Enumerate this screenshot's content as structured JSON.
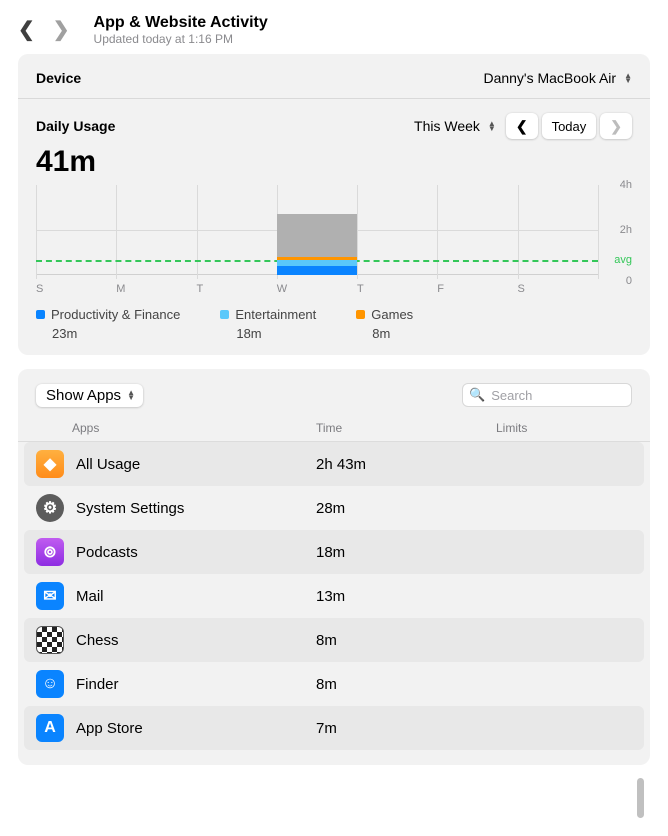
{
  "header": {
    "title": "App & Website Activity",
    "subtitle": "Updated today at 1:16 PM",
    "back_enabled": true,
    "forward_enabled": false
  },
  "device": {
    "label": "Device",
    "value": "Danny's MacBook Air"
  },
  "daily_usage": {
    "label": "Daily Usage",
    "period_selector": "This Week",
    "today_label": "Today",
    "total": "41m"
  },
  "chart": {
    "type": "stacked-bar",
    "background_color": "#f2f2f2",
    "grid_color": "#dadada",
    "avg_color": "#34c759",
    "y": {
      "max_hours": 4,
      "ticks": [
        {
          "hours": 4,
          "label": "4h"
        },
        {
          "hours": 2,
          "label": "2h"
        },
        {
          "hours": 0,
          "label": "0"
        }
      ]
    },
    "avg": {
      "hours": 0.65,
      "label": "avg"
    },
    "days": [
      {
        "label": "S"
      },
      {
        "label": "M"
      },
      {
        "label": "T"
      },
      {
        "label": "W"
      },
      {
        "label": "T"
      },
      {
        "label": "F"
      },
      {
        "label": "S"
      }
    ],
    "highlight_day_index": 3,
    "bar": {
      "day_index": 3,
      "total_hours": 2.72,
      "segments": [
        {
          "key": "productivity",
          "hours": 0.38,
          "color": "#0a84ff"
        },
        {
          "key": "entertainment",
          "hours": 0.3,
          "color": "#5ac8fa"
        },
        {
          "key": "games",
          "hours": 0.13,
          "color": "#ff9500"
        },
        {
          "key": "other",
          "hours": 1.91,
          "color": "#b0b0b0"
        }
      ]
    },
    "column_positions_pct": [
      0,
      14.28,
      28.56,
      42.84,
      57.12,
      71.4,
      85.68,
      100
    ]
  },
  "legend": [
    {
      "label": "Productivity & Finance",
      "time": "23m",
      "color": "#0a84ff"
    },
    {
      "label": "Entertainment",
      "time": "18m",
      "color": "#5ac8fa"
    },
    {
      "label": "Games",
      "time": "8m",
      "color": "#ff9500"
    }
  ],
  "apps_panel": {
    "show_label": "Show Apps",
    "search_placeholder": "Search",
    "columns": {
      "apps": "Apps",
      "time": "Time",
      "limits": "Limits"
    },
    "rows": [
      {
        "name": "All Usage",
        "time": "2h 43m",
        "icon_class": "bg-orange",
        "glyph": "◆"
      },
      {
        "name": "System Settings",
        "time": "28m",
        "icon_class": "bg-grey-circ",
        "glyph": "⚙"
      },
      {
        "name": "Podcasts",
        "time": "18m",
        "icon_class": "bg-purple",
        "glyph": "⊚"
      },
      {
        "name": "Mail",
        "time": "13m",
        "icon_class": "bg-blue",
        "glyph": "✉"
      },
      {
        "name": "Chess",
        "time": "8m",
        "icon_class": "bg-chess",
        "glyph": ""
      },
      {
        "name": "Finder",
        "time": "8m",
        "icon_class": "bg-blue",
        "glyph": "☺"
      },
      {
        "name": "App Store",
        "time": "7m",
        "icon_class": "bg-appstore",
        "glyph": "A"
      }
    ]
  },
  "colors": {
    "panel_bg": "#f2f2f2",
    "text_secondary": "#8a8a8e"
  }
}
